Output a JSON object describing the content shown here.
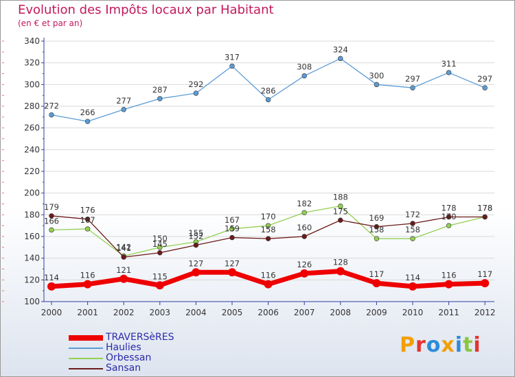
{
  "title": "Evolution des Impôts locaux par Habitant",
  "subtitle": "(en € et par an)",
  "brand": "Proxiti",
  "colors": {
    "axis": "#2d3e9e",
    "grid": "#d9d9d9",
    "title": "#c2185b",
    "brand_letters": [
      "#f29f05",
      "#e3342f",
      "#2e8bd9",
      "#f29f05",
      "#2e8bd9",
      "#8cc63f",
      "#e3342f"
    ]
  },
  "chart_data": {
    "type": "line",
    "title": "Evolution des Impôts locaux par Habitant",
    "subtitle": "(en € et par an)",
    "xlabel": "",
    "ylabel": "",
    "categories": [
      "2000",
      "2001",
      "2002",
      "2003",
      "2004",
      "2005",
      "2006",
      "2007",
      "2008",
      "2009",
      "2010",
      "2011",
      "2012"
    ],
    "ylim": [
      100,
      340
    ],
    "yticks": [
      100,
      120,
      140,
      160,
      180,
      200,
      220,
      240,
      260,
      280,
      300,
      320,
      340
    ],
    "grid": true,
    "legend_position": "bottom-left",
    "series": [
      {
        "name": "TRAVERSèRES",
        "color": "#ee0000",
        "width": "thick",
        "values": [
          114,
          116,
          121,
          115,
          127,
          127,
          116,
          126,
          128,
          117,
          114,
          116,
          117
        ]
      },
      {
        "name": "Haulies",
        "color": "#5b9bd5",
        "width": "thin",
        "values": [
          272,
          266,
          277,
          287,
          292,
          317,
          286,
          308,
          324,
          300,
          297,
          311,
          297
        ]
      },
      {
        "name": "Orbessan",
        "color": "#92d050",
        "width": "thin",
        "values": [
          166,
          167,
          142,
          150,
          155,
          167,
          170,
          182,
          188,
          158,
          158,
          170,
          178
        ]
      },
      {
        "name": "Sansan",
        "color": "#6b1a1a",
        "width": "thin",
        "values": [
          179,
          176,
          141,
          145,
          152,
          159,
          158,
          160,
          175,
          169,
          172,
          178,
          178
        ]
      }
    ]
  }
}
